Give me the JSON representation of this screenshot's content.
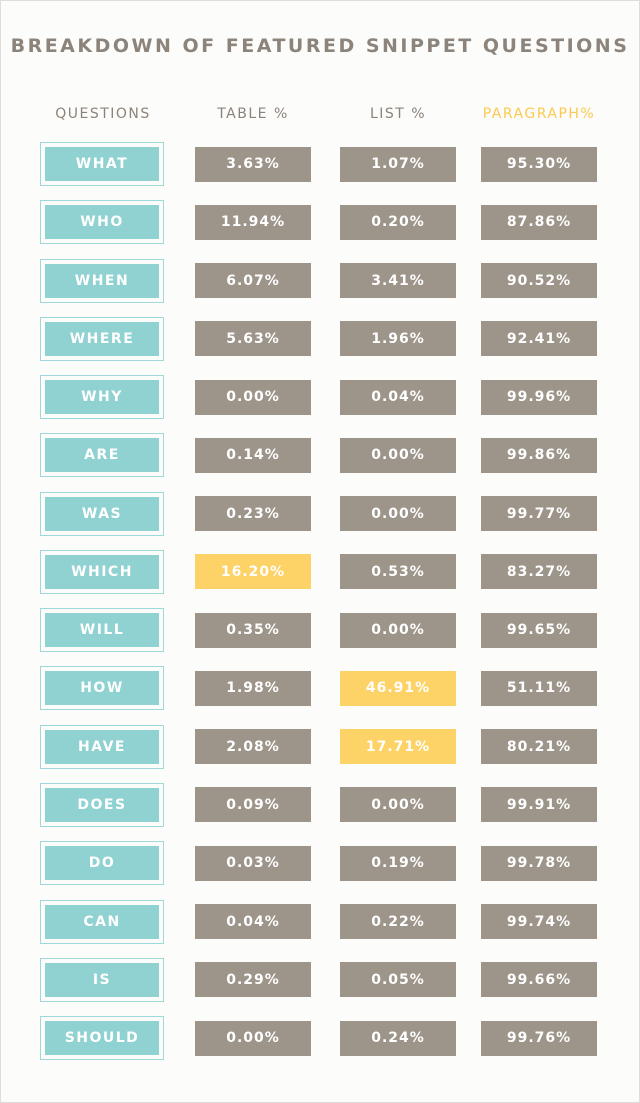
{
  "title": "BREAKDOWN OF FEATURED SNIPPET QUESTIONS",
  "table": {
    "headers": [
      "QUESTIONS",
      "TABLE %",
      "LIST %",
      "PARAGRAPH%"
    ],
    "rows": [
      [
        "WHAT",
        "3.63%",
        "1.07%",
        "95.30%"
      ],
      [
        "WHO",
        "11.94%",
        "0.20%",
        "87.86%"
      ],
      [
        "WHEN",
        "6.07%",
        "3.41%",
        "90.52%"
      ],
      [
        "WHERE",
        "5.63%",
        "1.96%",
        "92.41%"
      ],
      [
        "WHY",
        "0.00%",
        "0.04%",
        "99.96%"
      ],
      [
        "ARE",
        "0.14%",
        "0.00%",
        "99.86%"
      ],
      [
        "WAS",
        "0.23%",
        "0.00%",
        "99.77%"
      ],
      [
        "WHICH",
        "16.20%",
        "0.53%",
        "83.27%"
      ],
      [
        "WILL",
        "0.35%",
        "0.00%",
        "99.65%"
      ],
      [
        "HOW",
        "1.98%",
        "46.91%",
        "51.11%"
      ],
      [
        "HAVE",
        "2.08%",
        "17.71%",
        "80.21%"
      ],
      [
        "DOES",
        "0.09%",
        "0.00%",
        "99.91%"
      ],
      [
        "DO",
        "0.03%",
        "0.19%",
        "99.78%"
      ],
      [
        "CAN",
        "0.04%",
        "0.22%",
        "99.74%"
      ],
      [
        "IS",
        "0.29%",
        "0.05%",
        "99.66%"
      ],
      [
        "SHOULD",
        "0.00%",
        "0.24%",
        "99.76%"
      ]
    ]
  }
}
